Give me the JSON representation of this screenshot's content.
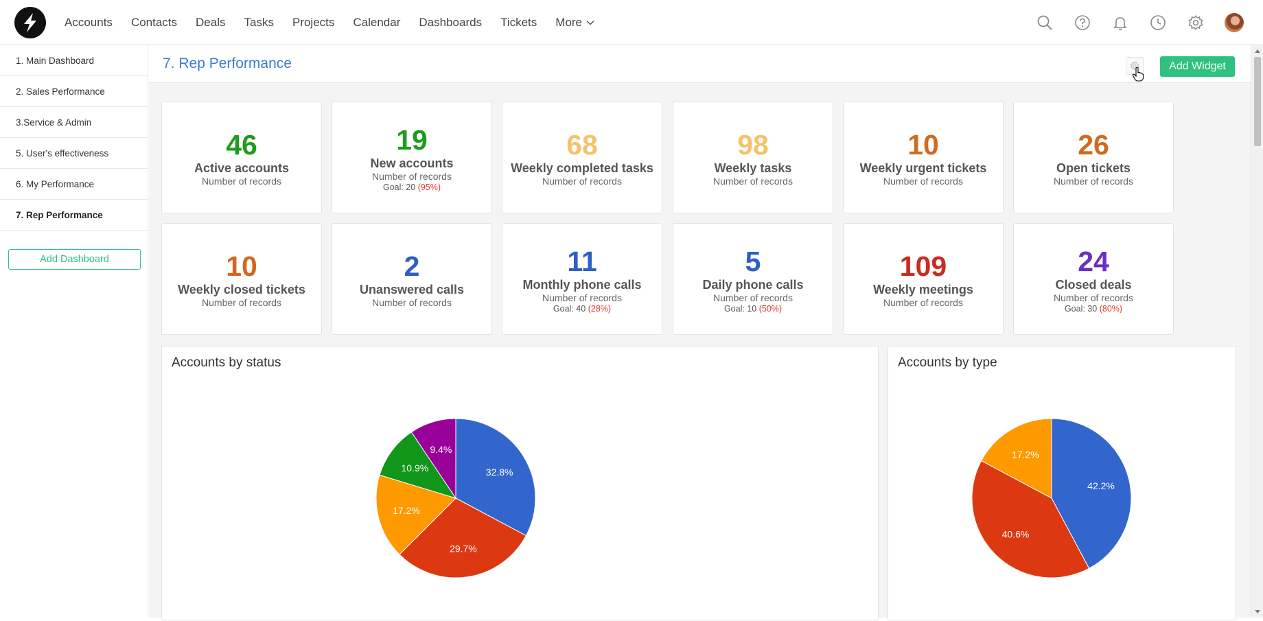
{
  "nav": {
    "items": [
      {
        "label": "Accounts",
        "name": "nav-accounts"
      },
      {
        "label": "Contacts",
        "name": "nav-contacts"
      },
      {
        "label": "Deals",
        "name": "nav-deals"
      },
      {
        "label": "Tasks",
        "name": "nav-tasks"
      },
      {
        "label": "Projects",
        "name": "nav-projects"
      },
      {
        "label": "Calendar",
        "name": "nav-calendar"
      },
      {
        "label": "Dashboards",
        "name": "nav-dashboards"
      },
      {
        "label": "Tickets",
        "name": "nav-tickets"
      }
    ],
    "more_label": "More",
    "icons": [
      "search-icon",
      "help-icon",
      "bell-icon",
      "clock-icon",
      "gear-icon",
      "avatar"
    ]
  },
  "sidebar": {
    "items": [
      {
        "label": "1. Main Dashboard",
        "active": false
      },
      {
        "label": "2. Sales Performance",
        "active": false
      },
      {
        "label": "3.Service & Admin",
        "active": false
      },
      {
        "label": "5. User's effectiveness",
        "active": false
      },
      {
        "label": "6. My Performance",
        "active": false
      },
      {
        "label": "7. Rep Performance",
        "active": true
      }
    ],
    "add_dashboard_label": "Add Dashboard"
  },
  "header": {
    "title": "7. Rep Performance",
    "add_widget_label": "Add Widget"
  },
  "cards": [
    {
      "value": "46",
      "label": "Active accounts",
      "sub": "Number of records",
      "color": "#1e9c1e"
    },
    {
      "value": "19",
      "label": "New accounts",
      "sub": "Number of records",
      "goal": "Goal: 20",
      "goal_pct": "(95%)",
      "color": "#1e9c1e"
    },
    {
      "value": "68",
      "label": "Weekly completed tasks",
      "sub": "Number of records",
      "color": "#f5c26b"
    },
    {
      "value": "98",
      "label": "Weekly tasks",
      "sub": "Number of records",
      "color": "#f5c26b"
    },
    {
      "value": "10",
      "label": "Weekly urgent tickets",
      "sub": "Number of records",
      "color": "#d2691e"
    },
    {
      "value": "26",
      "label": "Open tickets",
      "sub": "Number of records",
      "color": "#d2691e"
    },
    {
      "value": "10",
      "label": "Weekly closed tickets",
      "sub": "Number of records",
      "color": "#d2691e"
    },
    {
      "value": "2",
      "label": "Unanswered calls",
      "sub": "Number of records",
      "color": "#2f5fc4"
    },
    {
      "value": "11",
      "label": "Monthly phone calls",
      "sub": "Number of records",
      "goal": "Goal: 40",
      "goal_pct": "(28%)",
      "color": "#2f5fc4"
    },
    {
      "value": "5",
      "label": "Daily phone calls",
      "sub": "Number of records",
      "goal": "Goal: 10",
      "goal_pct": "(50%)",
      "color": "#2f5fc4"
    },
    {
      "value": "109",
      "label": "Weekly meetings",
      "sub": "Number of records",
      "color": "#cc2a22"
    },
    {
      "value": "24",
      "label": "Closed deals",
      "sub": "Number of records",
      "goal": "Goal: 30",
      "goal_pct": "(80%)",
      "color": "#6a2fc0"
    }
  ],
  "chart_data": [
    {
      "type": "pie",
      "title": "Accounts by status",
      "slices": [
        {
          "value": 32.8,
          "label": "32.8%",
          "color": "#3366cc"
        },
        {
          "value": 29.7,
          "label": "29.7%",
          "color": "#dc3912"
        },
        {
          "value": 17.2,
          "label": "17.2%",
          "color": "#ff9900"
        },
        {
          "value": 10.9,
          "label": "10.9%",
          "color": "#109618"
        },
        {
          "value": 9.4,
          "label": "9.4%",
          "color": "#990099"
        }
      ]
    },
    {
      "type": "pie",
      "title": "Accounts by type",
      "slices": [
        {
          "value": 42.2,
          "label": "42.2%",
          "color": "#3366cc"
        },
        {
          "value": 40.6,
          "label": "40.6%",
          "color": "#dc3912"
        },
        {
          "value": 17.2,
          "label": "17.2%",
          "color": "#ff9900"
        }
      ]
    }
  ]
}
